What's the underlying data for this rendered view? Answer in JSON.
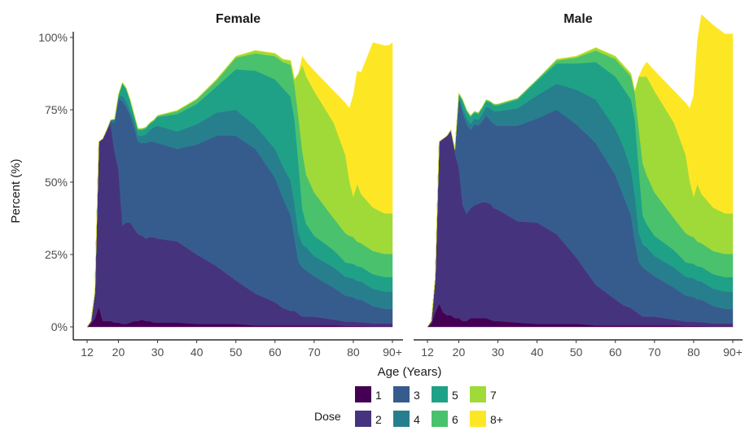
{
  "chart_data": {
    "type": "area",
    "stacked": true,
    "ylabel": "Percent (%)",
    "xlabel": "Age (Years)",
    "yticks": [
      "0%",
      "25%",
      "50%",
      "75%",
      "100%"
    ],
    "ylim": [
      0,
      100
    ],
    "xticks": [
      "12",
      "20",
      "30",
      "40",
      "50",
      "60",
      "70",
      "80",
      "90+"
    ],
    "xlim": [
      12,
      90
    ],
    "grid": false,
    "legend": {
      "title": "Dose",
      "position": "bottom",
      "entries": [
        "1",
        "2",
        "3",
        "4",
        "5",
        "6",
        "7",
        "8+"
      ]
    },
    "colors": [
      "#440154",
      "#46337e",
      "#365c8d",
      "#277f8e",
      "#1fa187",
      "#4ac16d",
      "#a0da39",
      "#fde725"
    ],
    "x": [
      12,
      13,
      14,
      15,
      16,
      17,
      18,
      19,
      20,
      21,
      22,
      23,
      24,
      25,
      26,
      27,
      28,
      29,
      30,
      35,
      40,
      45,
      50,
      55,
      60,
      62,
      64,
      65,
      66,
      67,
      68,
      70,
      75,
      78,
      79,
      80,
      81,
      82,
      85,
      88,
      89,
      90
    ],
    "panels": [
      {
        "title": "Female",
        "series": [
          {
            "name": "1",
            "values": [
              0,
              1,
              3,
              7,
              2,
              2,
              2,
              1.5,
              1.5,
              1,
              1,
              1.5,
              2,
              2,
              2.5,
              2,
              2,
              1.5,
              1.5,
              1.5,
              1,
              1,
              1,
              0.5,
              0.5,
              0.5,
              0.5,
              0.5,
              0.5,
              0.5,
              0.5,
              0.5,
              0.5,
              0.3,
              0.3,
              0.3,
              0.3,
              0.3,
              0.2,
              0.2,
              0.2,
              0.2
            ]
          },
          {
            "name": "2",
            "values": [
              0,
              1,
              9,
              57,
              63,
              66,
              68,
              59,
              53,
              34,
              35,
              34.5,
              32,
              30,
              29,
              28.5,
              29,
              29.5,
              29,
              28,
              24,
              20,
              15,
              11,
              8,
              6,
              5,
              5,
              4,
              3,
              3,
              3,
              2,
              1.5,
              1.5,
              1.5,
              1.3,
              1.3,
              1,
              1,
              1,
              1
            ]
          },
          {
            "name": "3",
            "values": [
              0,
              0,
              0,
              0,
              0,
              0,
              1,
              10,
              24,
              43,
              40,
              37,
              35,
              32,
              32,
              33,
              33,
              33,
              33,
              32,
              38,
              45,
              50,
              50,
              43,
              38,
              33,
              25,
              18,
              17,
              16,
              14,
              11,
              9,
              8.7,
              8.5,
              7.8,
              7.8,
              6,
              5,
              5,
              5
            ]
          },
          {
            "name": "4",
            "values": [
              0,
              0,
              0,
              0,
              0,
              0,
              0.5,
              1,
              1,
              2,
              2,
              1.5,
              2,
              2,
              2.5,
              3,
              4,
              5,
              6,
              6,
              7,
              8,
              9,
              8,
              10,
              11,
              12,
              12,
              10,
              8,
              8,
              7,
              7,
              6.5,
              6.5,
              6.5,
              6.5,
              6.3,
              6,
              6,
              6,
              6
            ]
          },
          {
            "name": "5",
            "values": [
              0,
              0,
              0,
              0,
              0,
              0,
              0,
              0.3,
              0.5,
              4,
              4,
              3.5,
              2,
              2,
              2,
              2,
              2,
              2,
              3,
              6,
              7,
              9,
              14,
              19,
              24,
              27,
              29,
              29,
              24,
              12,
              8,
              7,
              6,
              5,
              5,
              5,
              5,
              5,
              5,
              5,
              5,
              5
            ]
          },
          {
            "name": "6",
            "values": [
              0,
              0,
              0,
              0,
              0,
              0,
              0,
              0,
              0.3,
              0.5,
              0.5,
              0.5,
              0.5,
              0.5,
              0.5,
              0.5,
              0.5,
              0.5,
              0.5,
              1,
              1.5,
              2,
              4,
              6,
              8,
              9,
              11,
              12,
              16,
              20,
              17,
              15,
              11,
              10,
              9.5,
              9.2,
              8.5,
              8.2,
              8,
              8,
              8,
              8
            ]
          },
          {
            "name": "7",
            "values": [
              0,
              0,
              0,
              0,
              0,
              0,
              0,
              0,
              0,
              0,
              0,
              0,
              0,
              0,
              0,
              0,
              0,
              0,
              0,
              0.3,
              0.3,
              0.5,
              0.5,
              1,
              1,
              1,
              1.5,
              2,
              15,
              30,
              34,
              35,
              33,
              27,
              19,
              14,
              20,
              17,
              15,
              14,
              14,
              14
            ]
          },
          {
            "name": "8+",
            "values": [
              0,
              0,
              0,
              0,
              0,
              0,
              0,
              0,
              0,
              0,
              0,
              0,
              0,
              0,
              0,
              0,
              0,
              0,
              0,
              0,
              0,
              0,
              0,
              0,
              0,
              0,
              0,
              0,
              0,
              3,
              5,
              7,
              11,
              18,
              25,
              35,
              39,
              42,
              57,
              58,
              58,
              59
            ]
          }
        ]
      },
      {
        "title": "Male",
        "series": [
          {
            "name": "1",
            "values": [
              0,
              1,
              5,
              8,
              5,
              4,
              4,
              3,
              3,
              2,
              2,
              3,
              3,
              3,
              3,
              3,
              2.5,
              2,
              2,
              1.5,
              1,
              1,
              1,
              0.5,
              0.5,
              0.5,
              0.5,
              0.5,
              0.5,
              0.5,
              0.5,
              0.5,
              0.5,
              0.3,
              0.3,
              0.3,
              0.3,
              0.3,
              0.2,
              0.2,
              0.2,
              0.2
            ]
          },
          {
            "name": "2",
            "values": [
              0,
              1,
              12,
              56,
              60,
              62,
              64,
              57,
              52,
              40,
              37,
              38,
              39,
              39.5,
              40,
              40,
              40,
              39,
              38.5,
              35,
              35,
              31,
              23,
              14,
              9,
              7,
              6,
              5,
              4,
              3,
              3,
              3,
              2,
              1.5,
              1.5,
              1.5,
              1.3,
              1.3,
              1,
              1,
              1,
              1
            ]
          },
          {
            "name": "3",
            "values": [
              0,
              0,
              0,
              0,
              0,
              0,
              0,
              1,
              24,
              32,
              31,
              27,
              28,
              27,
              28,
              30,
              29,
              29,
              29,
              33,
              36,
              43,
              46,
              49,
              43,
              38,
              32,
              24,
              18,
              17,
              16,
              14,
              11,
              9,
              8.7,
              8.5,
              7.8,
              7.8,
              6,
              5,
              5,
              5
            ]
          },
          {
            "name": "4",
            "values": [
              0,
              0,
              0,
              0,
              0,
              0,
              0,
              0.3,
              1,
              1.5,
              2,
              2,
              2,
              2,
              2.5,
              3,
              4,
              4.5,
              5,
              6,
              8,
              9,
              12,
              15,
              16,
              17,
              16,
              16,
              10,
              8,
              8,
              7,
              7,
              6.5,
              6.5,
              6.5,
              6.5,
              6.3,
              6,
              6,
              6,
              6
            ]
          },
          {
            "name": "5",
            "values": [
              0,
              0,
              0,
              0,
              0,
              0,
              0,
              0,
              0.5,
              2.5,
              2.5,
              2.5,
              2,
              2,
              2,
              2,
              2,
              2,
              2,
              3,
              5,
              7,
              9,
              13,
              18,
              20,
              24,
              26,
              22,
              10,
              8,
              7,
              6,
              5,
              5,
              5,
              5,
              5,
              5,
              5,
              5,
              5
            ]
          },
          {
            "name": "6",
            "values": [
              0,
              0,
              0,
              0,
              0,
              0,
              0,
              0,
              0.3,
              0.5,
              0.5,
              0.5,
              0.5,
              0.5,
              0.5,
              0.5,
              0.5,
              0.5,
              0.5,
              0.5,
              0.5,
              1,
              2,
              4,
              6,
              7,
              8,
              9,
              14,
              18,
              17,
              15,
              11,
              10,
              9.5,
              9.2,
              8.5,
              8.2,
              8,
              8,
              8,
              8
            ]
          },
          {
            "name": "7",
            "values": [
              0,
              0,
              0,
              0,
              0,
              0,
              0,
              0,
              0,
              0,
              0,
              0,
              0,
              0,
              0,
              0,
              0,
              0,
              0,
              0,
              0,
              0.5,
              0.5,
              1,
              1,
              1,
              1,
              1,
              18,
              30,
              34,
              35,
              33,
              27,
              19,
              14,
              20,
              17,
              15,
              14,
              14,
              14
            ]
          },
          {
            "name": "8+",
            "values": [
              0,
              0,
              0,
              0,
              0,
              0,
              0,
              0,
              0,
              0,
              0,
              0,
              0,
              0,
              0,
              0,
              0,
              0,
              0,
              0,
              0,
              0,
              0,
              0,
              0,
              0,
              0,
              0,
              0,
              3,
              5,
              7,
              11,
              18,
              25,
              35,
              50,
              62,
              63,
              62,
              62,
              62
            ]
          }
        ]
      }
    ]
  }
}
